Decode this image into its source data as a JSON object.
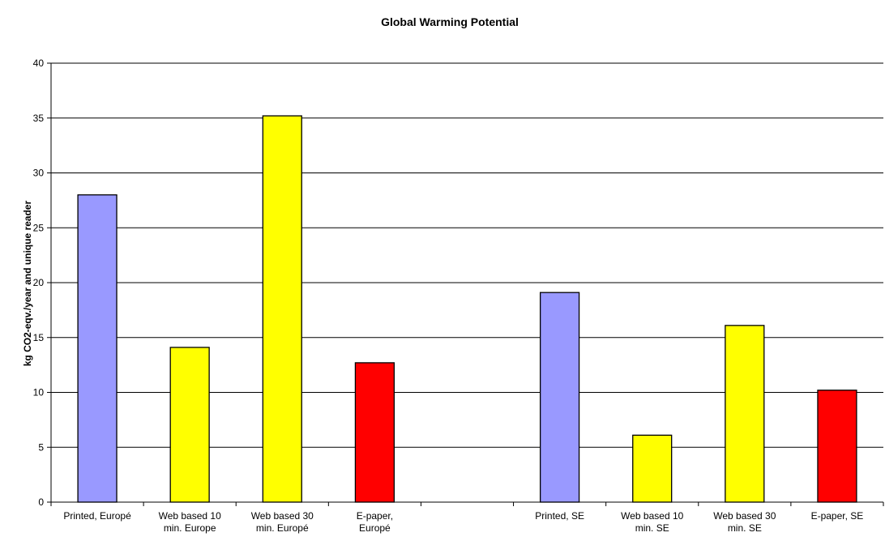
{
  "chart_data": {
    "type": "bar",
    "title": "Global Warming Potential",
    "xlabel": "",
    "ylabel": "kg CO2-eqv./year and unique reader",
    "ylim": [
      0,
      40
    ],
    "yticks": [
      0,
      5,
      10,
      15,
      20,
      25,
      30,
      35,
      40
    ],
    "grid": true,
    "categories": [
      [
        "Printed, Europé"
      ],
      [
        "Web based 10",
        "min. Europe"
      ],
      [
        "Web based 30",
        "min. Europé"
      ],
      [
        "E-paper,",
        "Europé"
      ],
      [
        ""
      ],
      [
        "Printed, SE"
      ],
      [
        "Web based 10",
        "min. SE"
      ],
      [
        "Web based 30",
        "min. SE"
      ],
      [
        "E-paper, SE"
      ]
    ],
    "values": [
      28,
      14.1,
      35.2,
      12.7,
      null,
      19.1,
      6.1,
      16.1,
      10.2
    ],
    "colors": [
      "#9999ff",
      "#ffff00",
      "#ffff00",
      "#ff0000",
      null,
      "#9999ff",
      "#ffff00",
      "#ffff00",
      "#ff0000"
    ]
  }
}
